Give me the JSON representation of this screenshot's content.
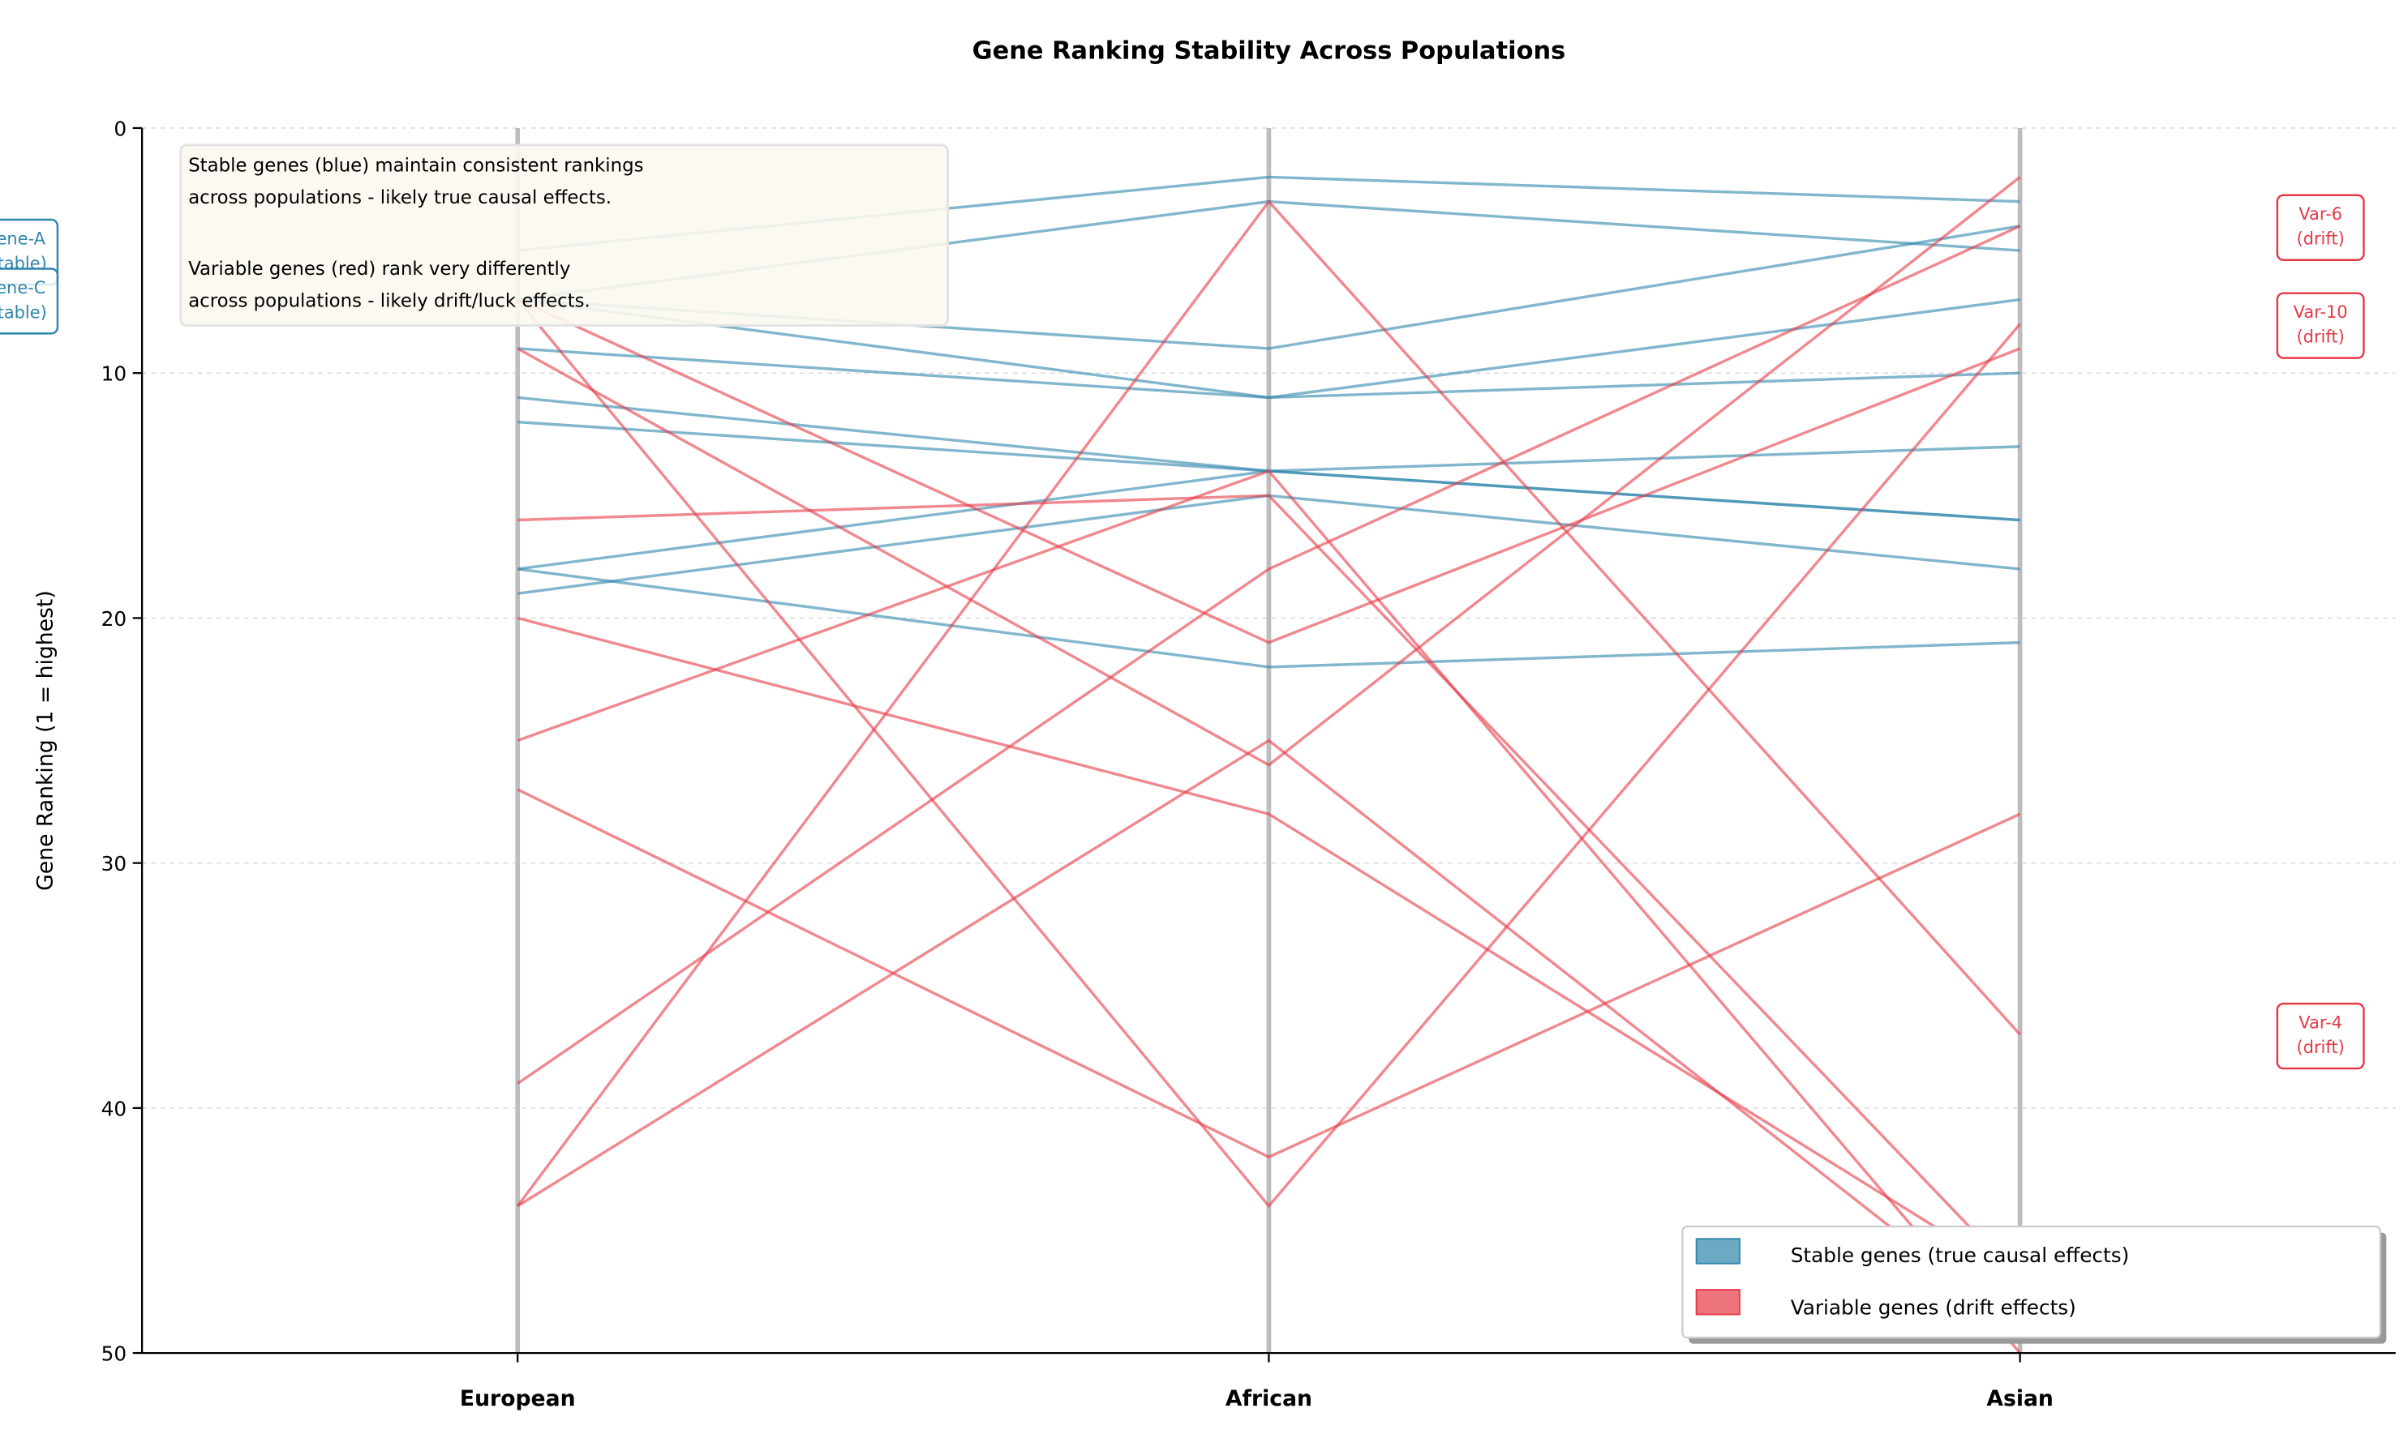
{
  "chart_data": {
    "type": "line",
    "title": "Gene Ranking Stability Across Populations",
    "xlabel": "",
    "ylabel": "Gene Ranking (1 = highest)",
    "categories": [
      "European",
      "African",
      "Asian"
    ],
    "ylim": [
      50,
      0
    ],
    "yticks": [
      "0",
      "10",
      "20",
      "30",
      "40",
      "50"
    ],
    "grid": "horizontal dashed",
    "legend_placement": "lower-right",
    "colors": {
      "stable": "#2E86AB",
      "variable": "#E63946"
    },
    "legend": [
      {
        "label": "Stable genes (true causal effects)",
        "group": "stable"
      },
      {
        "label": "Variable genes (drift effects)",
        "group": "variable"
      }
    ],
    "series_stable": [
      [
        5,
        2,
        3
      ],
      [
        7,
        3,
        5
      ],
      [
        7,
        9,
        4
      ],
      [
        7,
        11,
        7
      ],
      [
        9,
        11,
        10
      ],
      [
        11,
        14,
        16
      ],
      [
        12,
        14,
        16
      ],
      [
        18,
        14,
        13
      ],
      [
        19,
        15,
        18
      ],
      [
        18,
        22,
        21
      ]
    ],
    "series_variable": [
      [
        7,
        44,
        8
      ],
      [
        7,
        21,
        9
      ],
      [
        9,
        26,
        2
      ],
      [
        16,
        15,
        47
      ],
      [
        20,
        28,
        47
      ],
      [
        25,
        14,
        50
      ],
      [
        27,
        42,
        28
      ],
      [
        39,
        18,
        4
      ],
      [
        44,
        3,
        37
      ],
      [
        44,
        25,
        49
      ]
    ],
    "annotation": {
      "line1": "Stable genes (blue) maintain consistent rankings",
      "line2": "across populations - likely true causal effects.",
      "line3": "Variable genes (red) rank very differently",
      "line4": "across populations - likely drift/luck effects."
    },
    "point_labels": [
      {
        "name": "Gene-A",
        "tag": "(stable)",
        "group": "stable",
        "rank": 5
      },
      {
        "name": "Gene-C",
        "tag": "(stable)",
        "group": "stable",
        "rank": 7
      },
      {
        "name": "Var-6",
        "tag": "(drift)",
        "group": "variable",
        "rank": 4
      },
      {
        "name": "Var-10",
        "tag": "(drift)",
        "group": "variable",
        "rank": 8
      },
      {
        "name": "Var-4",
        "tag": "(drift)",
        "group": "variable",
        "rank": 37
      }
    ]
  }
}
